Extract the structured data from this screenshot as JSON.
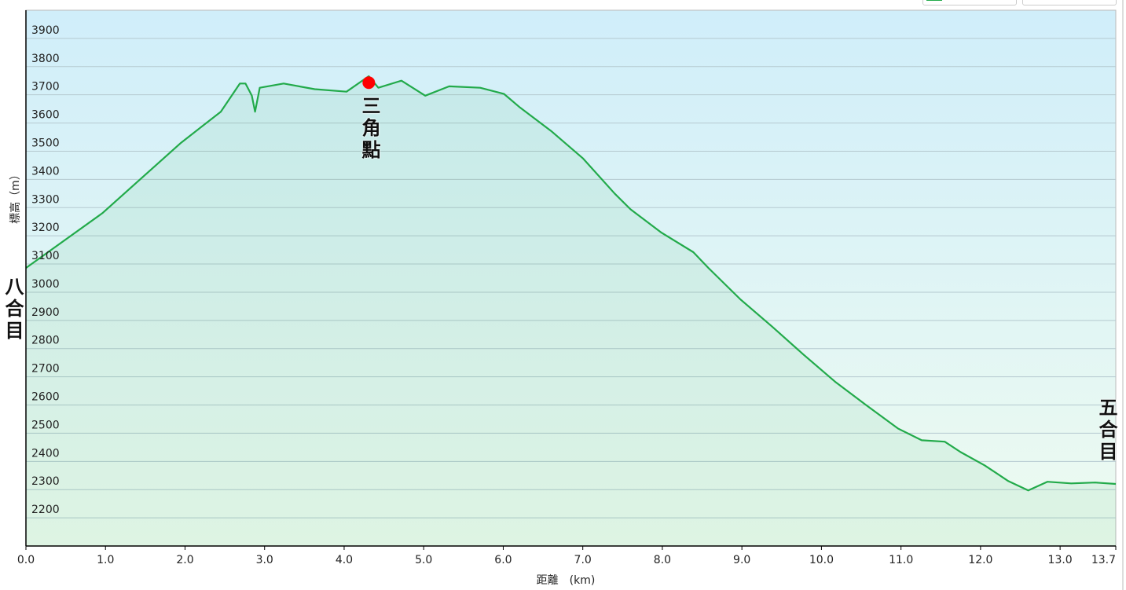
{
  "chart_data": {
    "type": "area",
    "title": "",
    "xlabel": "距離　(km)",
    "ylabel": "標高（m）",
    "xlim": [
      0,
      13.7
    ],
    "ylim": [
      2100,
      4000
    ],
    "grid": true,
    "legend_placement": "top-right",
    "x_ticks": [
      "0.0",
      "1.0",
      "2.0",
      "3.0",
      "4.0",
      "5.0",
      "6.0",
      "7.0",
      "8.0",
      "9.0",
      "10.0",
      "11.0",
      "12.0",
      "13.0",
      "13.7"
    ],
    "x_tick_values": [
      0,
      1,
      2,
      3,
      4,
      5,
      6,
      7,
      8,
      9,
      10,
      11,
      12,
      13,
      13.7
    ],
    "y_ticks": [
      "2200",
      "2300",
      "2400",
      "2500",
      "2600",
      "2700",
      "2800",
      "2900",
      "3000",
      "3100",
      "3200",
      "3300",
      "3400",
      "3500",
      "3600",
      "3700",
      "3800",
      "3900"
    ],
    "series": [
      {
        "color": "#22aa4a",
        "points": [
          [
            0,
            3086
          ],
          [
            0.96,
            3280
          ],
          [
            1.95,
            3530
          ],
          [
            2.45,
            3640
          ],
          [
            2.69,
            3740
          ],
          [
            2.76,
            3740
          ],
          [
            2.84,
            3697
          ],
          [
            2.88,
            3640
          ],
          [
            2.94,
            3725
          ],
          [
            3.24,
            3740
          ],
          [
            3.63,
            3720
          ],
          [
            4.03,
            3711
          ],
          [
            4.31,
            3766
          ],
          [
            4.43,
            3725
          ],
          [
            4.72,
            3750
          ],
          [
            5.02,
            3697
          ],
          [
            5.32,
            3730
          ],
          [
            5.71,
            3725
          ],
          [
            6.01,
            3703
          ],
          [
            6.21,
            3655
          ],
          [
            6.6,
            3572
          ],
          [
            7.0,
            3475
          ],
          [
            7.4,
            3350
          ],
          [
            7.6,
            3294
          ],
          [
            7.99,
            3211
          ],
          [
            8.39,
            3142
          ],
          [
            8.58,
            3086
          ],
          [
            8.98,
            2975
          ],
          [
            9.38,
            2878
          ],
          [
            9.77,
            2780
          ],
          [
            10.17,
            2683
          ],
          [
            10.56,
            2600
          ],
          [
            10.96,
            2517
          ],
          [
            11.26,
            2475
          ],
          [
            11.55,
            2470
          ],
          [
            11.75,
            2433
          ],
          [
            12.05,
            2386
          ],
          [
            12.35,
            2330
          ],
          [
            12.6,
            2297
          ],
          [
            12.84,
            2328
          ],
          [
            13.14,
            2322
          ],
          [
            13.44,
            2325
          ],
          [
            13.7,
            2320
          ]
        ]
      }
    ],
    "marker": {
      "x": 4.31,
      "y": 3743,
      "color": "#ff0000"
    },
    "annotations": [
      {
        "text": "八合目",
        "x": 0,
        "y": 2950
      },
      {
        "text": "三角點",
        "x": 4.35,
        "y": 3580
      },
      {
        "text": "五合目",
        "x": 13.7,
        "y": 2450
      }
    ],
    "background_top": "#d0eefa",
    "background_bottom": "#eefbf0"
  }
}
